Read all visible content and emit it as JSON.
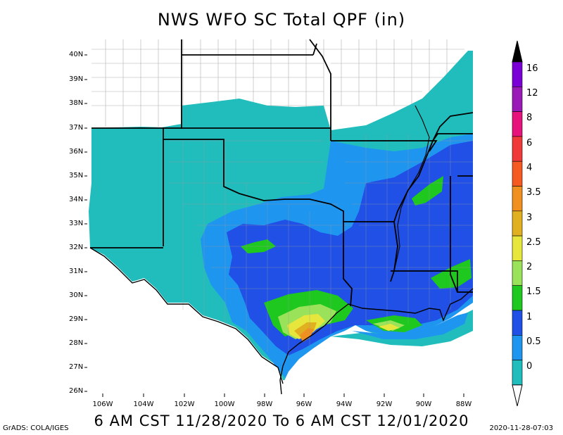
{
  "header": {
    "title": "NWS WFO SC Total QPF (in)"
  },
  "footer": {
    "period": "6 AM CST 11/28/2020 To 6 AM CST 12/01/2020",
    "credit": "GrADS: COLA/IGES",
    "timestamp": "2020-11-28-07:03"
  },
  "map": {
    "lat_labels": [
      "40N",
      "39N",
      "38N",
      "37N",
      "36N",
      "35N",
      "34N",
      "33N",
      "32N",
      "31N",
      "30N",
      "29N",
      "28N",
      "27N",
      "26N"
    ],
    "lon_labels": [
      "106W",
      "104W",
      "102W",
      "100W",
      "98W",
      "96W",
      "94W",
      "92W",
      "90W",
      "88W"
    ]
  },
  "colorbar": {
    "labels": [
      "16",
      "12",
      "8",
      "6",
      "4",
      "3.5",
      "3",
      "2.5",
      "2",
      "1.5",
      "1",
      "0.5",
      "0"
    ],
    "colors": [
      "#7a00d6",
      "#9a1ab8",
      "#e8127c",
      "#f03a3a",
      "#f55a22",
      "#f09020",
      "#e0b020",
      "#e6e63c",
      "#9ae25a",
      "#1ec81e",
      "#2050e6",
      "#1e96f0",
      "#21bdbd"
    ],
    "top_color": "#000000"
  }
}
